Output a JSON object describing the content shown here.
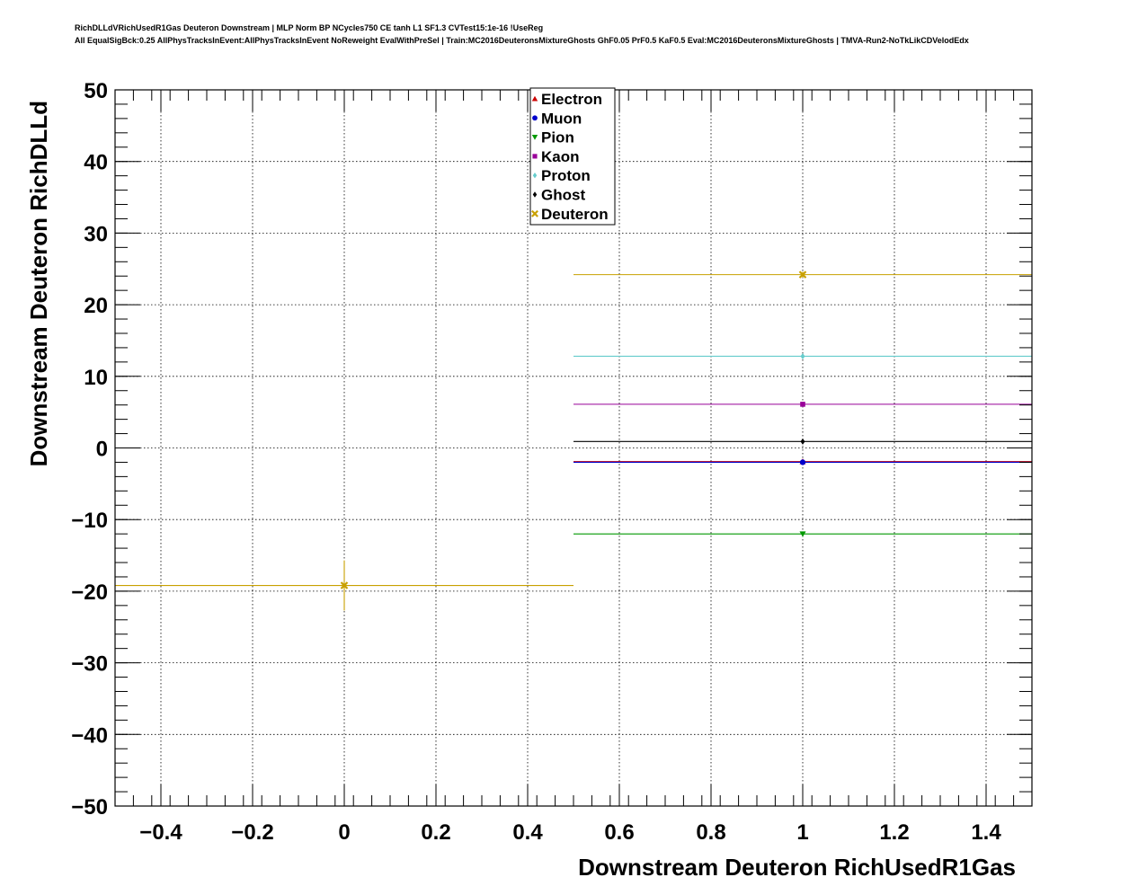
{
  "header": {
    "title_line1": "RichDLLdVRichUsedR1Gas Deuteron Downstream | MLP Norm BP NCycles750 CE tanh L1 SF1.3 CVTest15:1e-16 !UseReg",
    "title_line2": "All EqualSigBck:0.25 AllPhysTracksInEvent:AllPhysTracksInEvent NoReweight EvalWithPreSel | Train:MC2016DeuteronsMixtureGhosts GhF0.05 PrF0.5 KaF0.5 Eval:MC2016DeuteronsMixtureGhosts | TMVA-Run2-NoTkLikCDVelodEdx"
  },
  "chart_data": {
    "type": "scatter",
    "xlabel": "Downstream Deuteron RichUsedR1Gas",
    "ylabel": "Downstream Deuteron RichDLLd",
    "xlim": [
      -0.5,
      1.5
    ],
    "ylim": [
      -50,
      50
    ],
    "x_ticks": [
      -0.4,
      -0.2,
      0,
      0.2,
      0.4,
      0.6,
      0.8,
      1,
      1.2,
      1.4
    ],
    "x_tick_labels": [
      "−0.4",
      "−0.2",
      "0",
      "0.2",
      "0.4",
      "0.6",
      "0.8",
      "1",
      "1.2",
      "1.4"
    ],
    "y_ticks": [
      -50,
      -40,
      -30,
      -20,
      -10,
      0,
      10,
      20,
      30,
      40,
      50
    ],
    "y_tick_labels": [
      "−50",
      "−40",
      "−30",
      "−20",
      "−10",
      "0",
      "10",
      "20",
      "30",
      "40",
      "50"
    ],
    "grid": true,
    "legend_position": "top-center",
    "series": [
      {
        "name": "Electron",
        "color": "#cc0000",
        "marker": "triangle-up",
        "points": [
          {
            "x": 1,
            "y": -1.9,
            "xerr": 0.5,
            "yerr": 0.3
          }
        ]
      },
      {
        "name": "Muon",
        "color": "#0000cc",
        "marker": "circle",
        "points": [
          {
            "x": 1,
            "y": -2.0,
            "xerr": 0.5,
            "yerr": 0.3
          }
        ]
      },
      {
        "name": "Pion",
        "color": "#009900",
        "marker": "triangle-down",
        "points": [
          {
            "x": 1,
            "y": -12.0,
            "xerr": 0.5,
            "yerr": 0.3
          }
        ]
      },
      {
        "name": "Kaon",
        "color": "#990099",
        "marker": "square",
        "points": [
          {
            "x": 1,
            "y": 6.1,
            "xerr": 0.5,
            "yerr": 0.3
          }
        ]
      },
      {
        "name": "Proton",
        "color": "#66cccc",
        "marker": "diamond",
        "points": [
          {
            "x": 1,
            "y": 12.8,
            "xerr": 0.5,
            "yerr": 0.3
          }
        ]
      },
      {
        "name": "Ghost",
        "color": "#000000",
        "marker": "diamond",
        "points": [
          {
            "x": 1,
            "y": 0.9,
            "xerr": 0.5,
            "yerr": 0.2
          }
        ]
      },
      {
        "name": "Deuteron",
        "color": "#c8a000",
        "marker": "cross",
        "points": [
          {
            "x": 0,
            "y": -19.2,
            "xerr": 0.5,
            "yerr": 3.5
          },
          {
            "x": 1,
            "y": 24.2,
            "xerr": 0.5,
            "yerr": 0.4
          }
        ]
      }
    ]
  }
}
